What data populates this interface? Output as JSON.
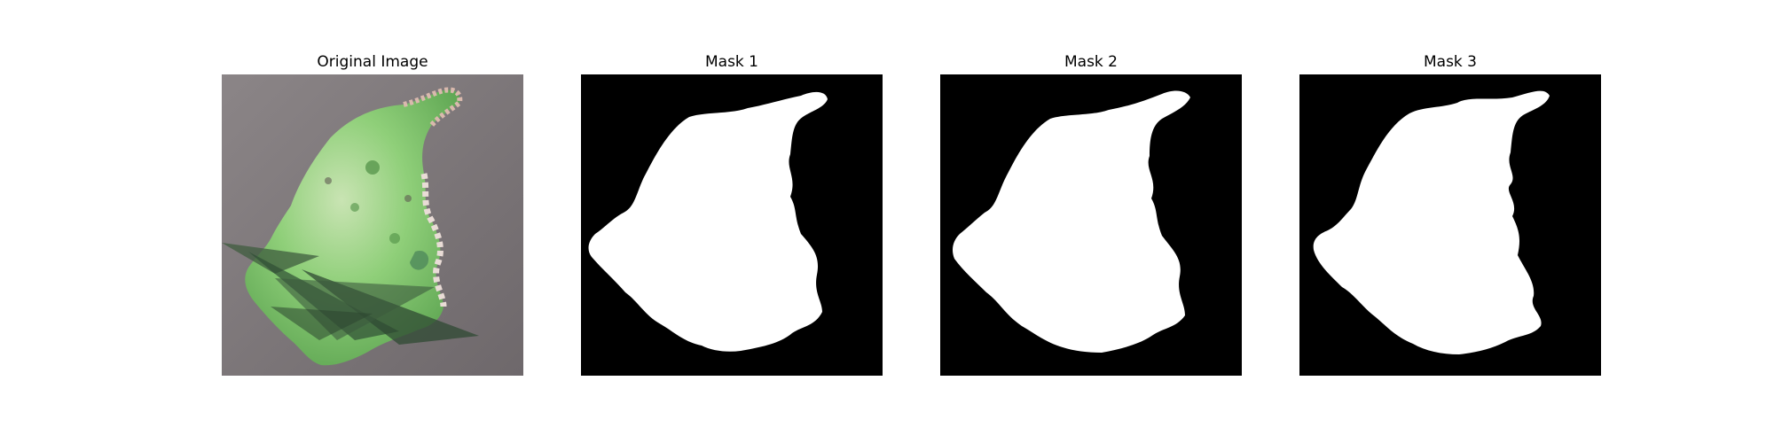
{
  "panels": [
    {
      "title": "Original Image"
    },
    {
      "title": "Mask 1"
    },
    {
      "title": "Mask 2"
    },
    {
      "title": "Mask 3"
    }
  ],
  "colors": {
    "background": "#ffffff",
    "mask_background": "#000000",
    "mask_foreground": "#ffffff",
    "photo_background": "#7d7678",
    "leaf_green": "#7fbf6a",
    "shadow_green": "#3f5c3f"
  }
}
